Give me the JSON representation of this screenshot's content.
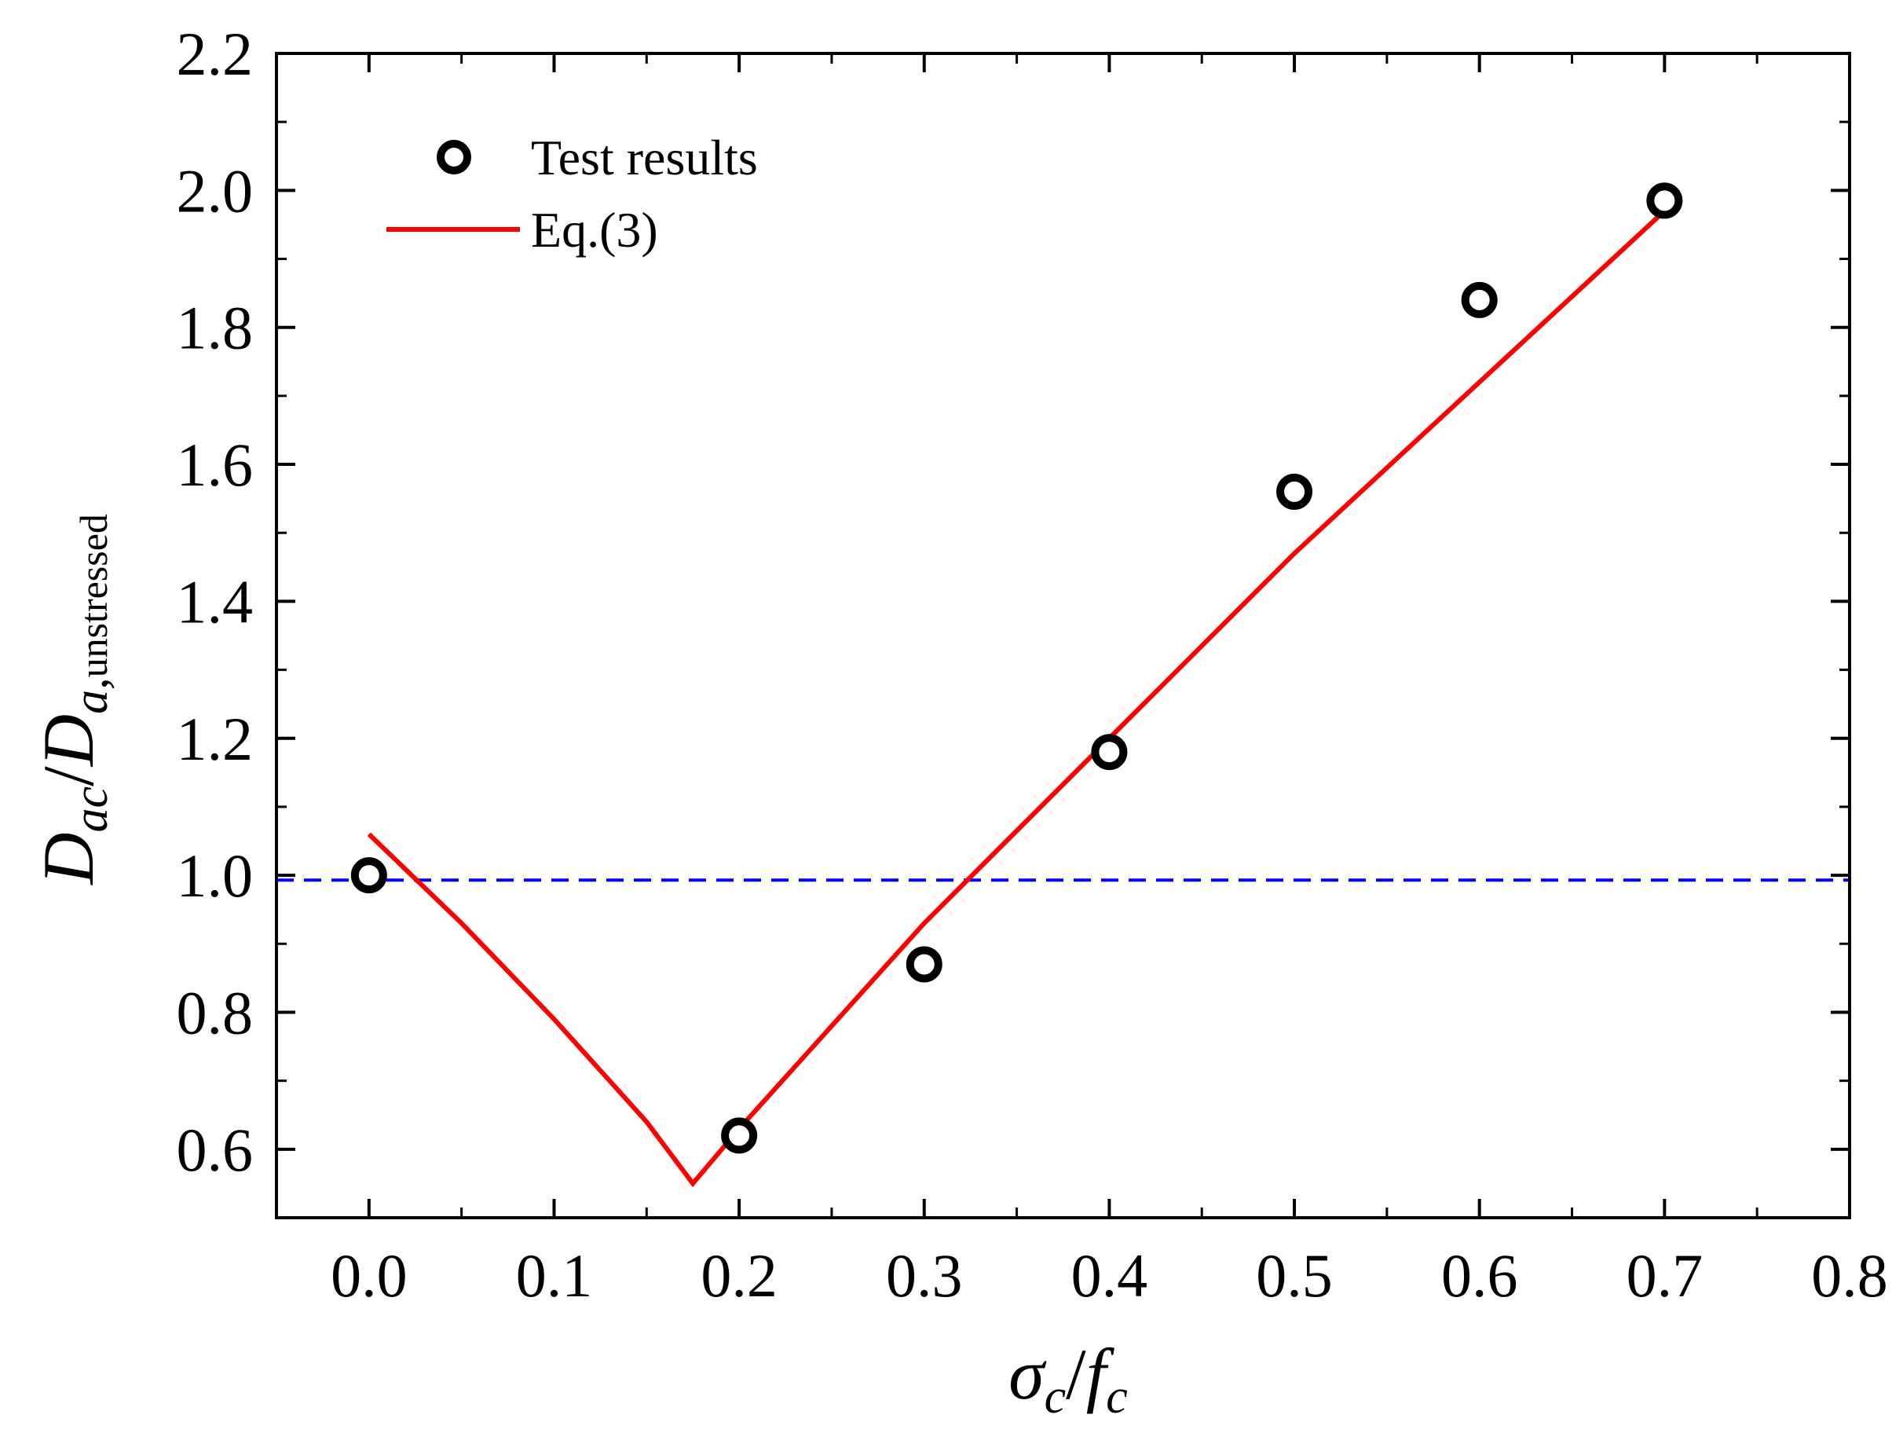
{
  "chart_data": {
    "type": "scatter",
    "title": "",
    "xlabel": {
      "main": "σ",
      "main_sub": "c",
      "sep": "/",
      "second": "f",
      "second_sub": "c"
    },
    "ylabel": {
      "main": "D",
      "main_sub": "ac",
      "sep": "/",
      "second": "D",
      "second_sub_italic": "a,",
      "second_sub_rest": "unstressed"
    },
    "xlim": [
      -0.05,
      0.8
    ],
    "ylim": [
      0.5,
      2.2
    ],
    "xticks": [
      "0.0",
      "0.1",
      "0.2",
      "0.3",
      "0.4",
      "0.5",
      "0.6",
      "0.7",
      "0.8"
    ],
    "yticks": [
      "0.6",
      "0.8",
      "1.0",
      "1.2",
      "1.4",
      "1.6",
      "1.8",
      "2.0",
      "2.2"
    ],
    "legend": {
      "position": "top-left",
      "entries": [
        "Test results",
        "Eq.(3)"
      ]
    },
    "series": [
      {
        "name": "Test results",
        "kind": "marker",
        "marker": "open-circle",
        "color": "#000000",
        "x": [
          0.0,
          0.2,
          0.3,
          0.4,
          0.5,
          0.6,
          0.7
        ],
        "y": [
          1.0,
          0.62,
          0.87,
          1.18,
          1.56,
          1.84,
          1.985
        ]
      },
      {
        "name": "Eq.(3)",
        "kind": "line",
        "color": "#ff0000",
        "x": [
          0.0,
          0.05,
          0.1,
          0.15,
          0.175,
          0.2,
          0.3,
          0.4,
          0.5,
          0.6,
          0.7
        ],
        "y": [
          1.06,
          0.93,
          0.79,
          0.64,
          0.55,
          0.63,
          0.93,
          1.2,
          1.47,
          1.72,
          1.97
        ]
      }
    ],
    "reference_line": {
      "axis": "y",
      "value": 0.993,
      "color": "#0000ff",
      "style": "dashed"
    }
  }
}
